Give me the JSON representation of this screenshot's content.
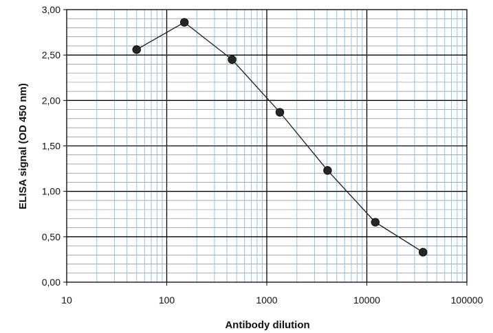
{
  "chart_data": {
    "type": "scatter",
    "title": "",
    "xlabel": "Antibody dilution",
    "ylabel": "ELISA signal (OD 450 nm)",
    "x_scale": "log",
    "xlim": [
      10,
      100000
    ],
    "ylim": [
      0.0,
      3.0
    ],
    "x_ticks": [
      "10",
      "100",
      "1000",
      "10000",
      "100000"
    ],
    "y_ticks": [
      "0,00",
      "0,50",
      "1,00",
      "1,50",
      "2,00",
      "2,50",
      "3,00"
    ],
    "grid": true,
    "legend": "none",
    "colors": {
      "major_grid": "#000000",
      "minor_grid_x": "#8fc4e0",
      "minor_grid_y": "#000000",
      "line": "#1a1a1a",
      "marker": "#262626"
    },
    "series": [
      {
        "x": [
          50,
          150,
          450,
          1350,
          4050,
          12150,
          36450
        ],
        "y": [
          2.56,
          2.86,
          2.45,
          1.87,
          1.23,
          0.66,
          0.33
        ]
      }
    ]
  }
}
